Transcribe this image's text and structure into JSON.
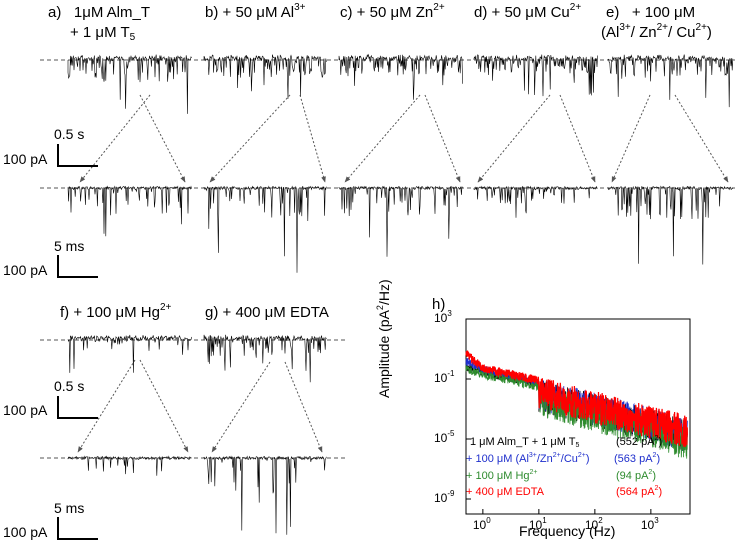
{
  "panels": {
    "a": {
      "letter": "a)",
      "line1": "1μM Alm_T",
      "line2": "+ 1 μM T",
      "line2_sub": "5"
    },
    "b": {
      "letter": "b)",
      "text": "+ 50 μM Al",
      "sup": "3+"
    },
    "c": {
      "letter": "c)",
      "text": "+ 50 μM Zn",
      "sup": "2+"
    },
    "d": {
      "letter": "d)",
      "text": "+ 50 μM Cu",
      "sup": "2+"
    },
    "e": {
      "letter": "e)",
      "line1": "+ 100 μM",
      "line2_pre": "(Al",
      "line2_s1": "3+",
      "line2_mid1": "/ Zn",
      "line2_s2": "2+",
      "line2_mid2": "/ Cu",
      "line2_s3": "2+",
      "line2_post": ")"
    },
    "f": {
      "letter": "f)",
      "text": "+ 100 μM Hg",
      "sup": "2+"
    },
    "g": {
      "letter": "g)",
      "text": "+ 400 μM EDTA"
    },
    "h": {
      "letter": "h)"
    }
  },
  "scale_bars": {
    "top_time": "0.5 s",
    "top_current": "100 pA",
    "zoom_time": "5 ms",
    "zoom_current": "100 pA",
    "bottom_time": "0.5 s",
    "bottom_current": "100 pA",
    "bottom_zoom_time": "5 ms",
    "bottom_zoom_current": "100 pA"
  },
  "chart_data": {
    "type": "line",
    "xscale": "log",
    "yscale": "log",
    "xlabel": "Frequency (Hz)",
    "ylabel_pre": "Amplitude (pA",
    "ylabel_sup": "2",
    "ylabel_post": "/Hz)",
    "xlim": [
      0.5,
      5000
    ],
    "ylim": [
      1e-10,
      1000
    ],
    "x_ticks": [
      {
        "base": "10",
        "exp": "0"
      },
      {
        "base": "10",
        "exp": "1"
      },
      {
        "base": "10",
        "exp": "2"
      },
      {
        "base": "10",
        "exp": "3"
      }
    ],
    "y_ticks": [
      {
        "base": "10",
        "exp": "3"
      },
      {
        "base": "10",
        "exp": "-1"
      },
      {
        "base": "10",
        "exp": "-5"
      },
      {
        "base": "10",
        "exp": "-9"
      }
    ],
    "series": [
      {
        "color": "#000000",
        "label_pre": "1 μM Alm_T + 1 μM T",
        "label_sub": "5",
        "value_pre": "(552 pA",
        "value_sup": "2",
        "value_post": ")",
        "points": [
          [
            0.5,
            0.6
          ],
          [
            1,
            0.3
          ],
          [
            10,
            0.05
          ],
          [
            100,
            0.005
          ],
          [
            1000,
            0.0005
          ],
          [
            4500,
            0.0001
          ]
        ]
      },
      {
        "color": "#1f2fcc",
        "label_pre": "+ 100 μM (Al",
        "label_s1": "3+",
        "label_m1": "/Zn",
        "label_s2": "2+",
        "label_m2": "/Cu",
        "label_s3": "2+",
        "label_post": ")",
        "value_pre": "(563 pA",
        "value_sup": "2",
        "value_post": ")",
        "points": [
          [
            0.5,
            1.5
          ],
          [
            1,
            0.4
          ],
          [
            10,
            0.06
          ],
          [
            100,
            0.006
          ],
          [
            1000,
            0.0006
          ],
          [
            4500,
            0.0001
          ]
        ]
      },
      {
        "color": "#2e8b2e",
        "label_pre": "+ 100 μM Hg",
        "label_sup": "2+",
        "value_pre": "(94 pA",
        "value_sup": "2",
        "value_post": ")",
        "points": [
          [
            0.5,
            0.5
          ],
          [
            1,
            0.2
          ],
          [
            10,
            0.03
          ],
          [
            100,
            0.002
          ],
          [
            1000,
            0.0002
          ],
          [
            4500,
            3e-05
          ]
        ]
      },
      {
        "color": "#ff0000",
        "label_pre": "+ 400 μM EDTA",
        "value_pre": "(564 pA",
        "value_sup": "2",
        "value_post": ")",
        "points": [
          [
            0.5,
            5
          ],
          [
            1,
            0.5
          ],
          [
            10,
            0.08
          ],
          [
            100,
            0.008
          ],
          [
            1000,
            0.0008
          ],
          [
            4500,
            0.0002
          ]
        ]
      }
    ]
  }
}
